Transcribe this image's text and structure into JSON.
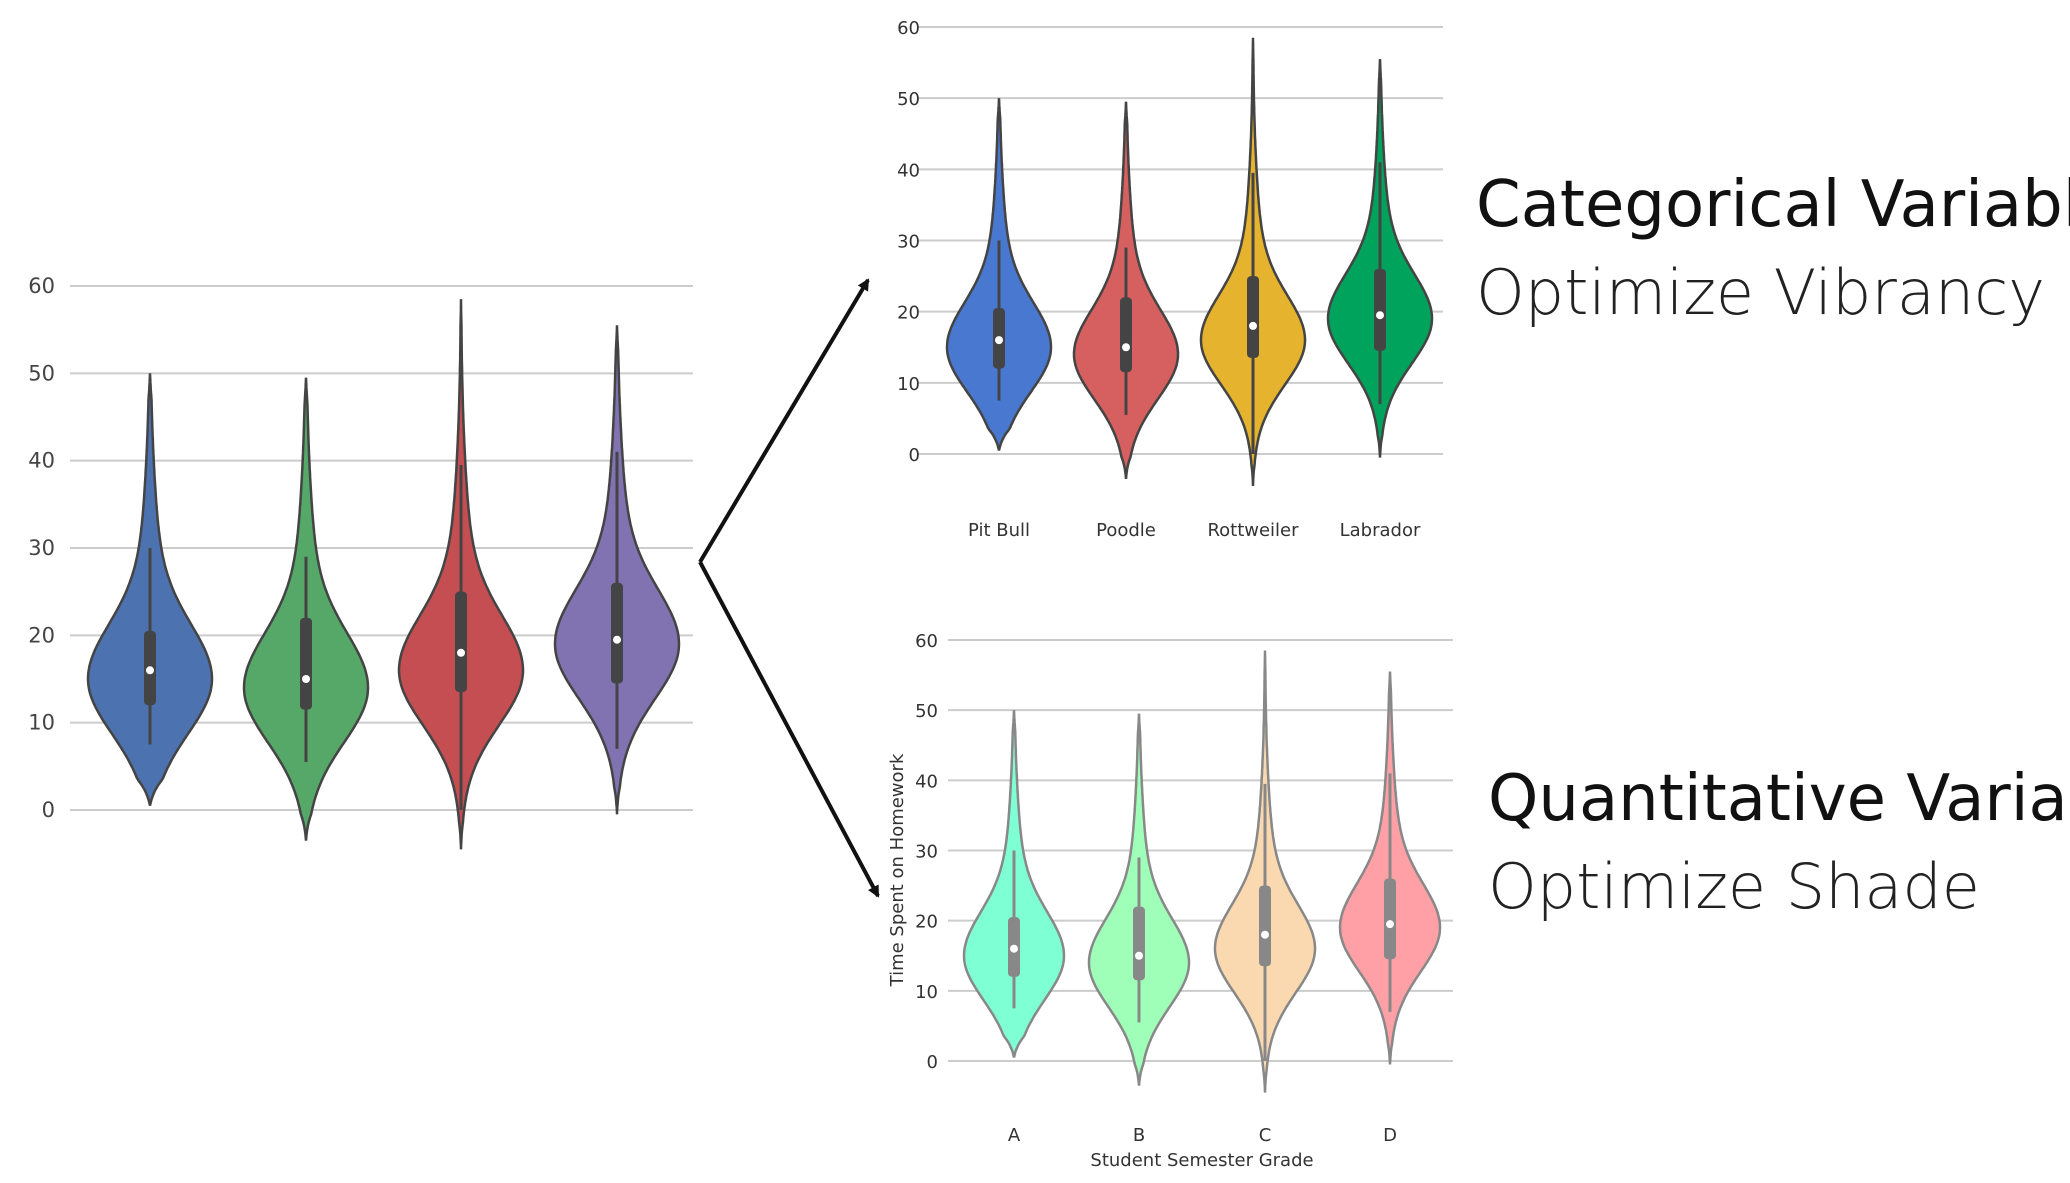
{
  "annotations": {
    "categorical_title": "Categorical Variable",
    "categorical_subtitle": "Optimize Vibrancy",
    "quantitative_title": "Quantitative Variable",
    "quantitative_subtitle": "Optimize Shade"
  },
  "chart_data": [
    {
      "type": "violin",
      "title": "",
      "xlabel": "",
      "ylabel": "",
      "ylim": [
        -5,
        60
      ],
      "yticks": [
        0,
        10,
        20,
        30,
        40,
        50,
        60
      ],
      "grid": true,
      "categories": [
        "",
        "",
        "",
        ""
      ],
      "colors": [
        "#4C72B0",
        "#55A868",
        "#C44E52",
        "#8172B2"
      ],
      "series": [
        {
          "min": 0.5,
          "max": 50,
          "q1": 12,
          "median": 16,
          "q3": 20.5,
          "whisker_low": 7.5,
          "whisker_high": 30,
          "mode": 15
        },
        {
          "min": -3.5,
          "max": 49.5,
          "q1": 11.5,
          "median": 15,
          "q3": 22,
          "whisker_low": 5.5,
          "whisker_high": 29,
          "mode": 14
        },
        {
          "min": -4.5,
          "max": 58.5,
          "q1": 13.5,
          "median": 18,
          "q3": 25,
          "whisker_low": 0,
          "whisker_high": 39.5,
          "mode": 16
        },
        {
          "min": -0.5,
          "max": 55.5,
          "q1": 14.5,
          "median": 19.5,
          "q3": 26,
          "whisker_low": 7,
          "whisker_high": 41,
          "mode": 19
        }
      ]
    },
    {
      "type": "violin",
      "title": "",
      "xlabel": "",
      "ylabel": "",
      "ylim": [
        -5,
        60
      ],
      "yticks": [
        0,
        10,
        20,
        30,
        40,
        50,
        60
      ],
      "grid": true,
      "categories": [
        "Pit Bull",
        "Poodle",
        "Rottweiler",
        "Labrador"
      ],
      "colors": [
        "#4878CF",
        "#D65F5F",
        "#E6B32E",
        "#00A35B"
      ],
      "series": [
        {
          "min": 0.5,
          "max": 50,
          "q1": 12,
          "median": 16,
          "q3": 20.5,
          "whisker_low": 7.5,
          "whisker_high": 30,
          "mode": 15
        },
        {
          "min": -3.5,
          "max": 49.5,
          "q1": 11.5,
          "median": 15,
          "q3": 22,
          "whisker_low": 5.5,
          "whisker_high": 29,
          "mode": 14
        },
        {
          "min": -4.5,
          "max": 58.5,
          "q1": 13.5,
          "median": 18,
          "q3": 25,
          "whisker_low": 0,
          "whisker_high": 39.5,
          "mode": 16
        },
        {
          "min": -0.5,
          "max": 55.5,
          "q1": 14.5,
          "median": 19.5,
          "q3": 26,
          "whisker_low": 7,
          "whisker_high": 41,
          "mode": 19
        }
      ]
    },
    {
      "type": "violin",
      "title": "",
      "xlabel": "Student Semester Grade",
      "ylabel": "Time Spent on Homework",
      "ylim": [
        -5,
        60
      ],
      "yticks": [
        0,
        10,
        20,
        30,
        40,
        50,
        60
      ],
      "grid": true,
      "categories": [
        "A",
        "B",
        "C",
        "D"
      ],
      "colors": [
        "#7FFFD4",
        "#9FFFB8",
        "#FBD9B0",
        "#FFA0A6"
      ],
      "series": [
        {
          "min": 0.5,
          "max": 50,
          "q1": 12,
          "median": 16,
          "q3": 20.5,
          "whisker_low": 7.5,
          "whisker_high": 30,
          "mode": 15
        },
        {
          "min": -3.5,
          "max": 49.5,
          "q1": 11.5,
          "median": 15,
          "q3": 22,
          "whisker_low": 5.5,
          "whisker_high": 29,
          "mode": 14
        },
        {
          "min": -4.5,
          "max": 58.5,
          "q1": 13.5,
          "median": 18,
          "q3": 25,
          "whisker_low": 0,
          "whisker_high": 39.5,
          "mode": 16
        },
        {
          "min": -0.5,
          "max": 55.5,
          "q1": 14.5,
          "median": 19.5,
          "q3": 26,
          "whisker_low": 7,
          "whisker_high": 41,
          "mode": 19
        }
      ]
    }
  ]
}
